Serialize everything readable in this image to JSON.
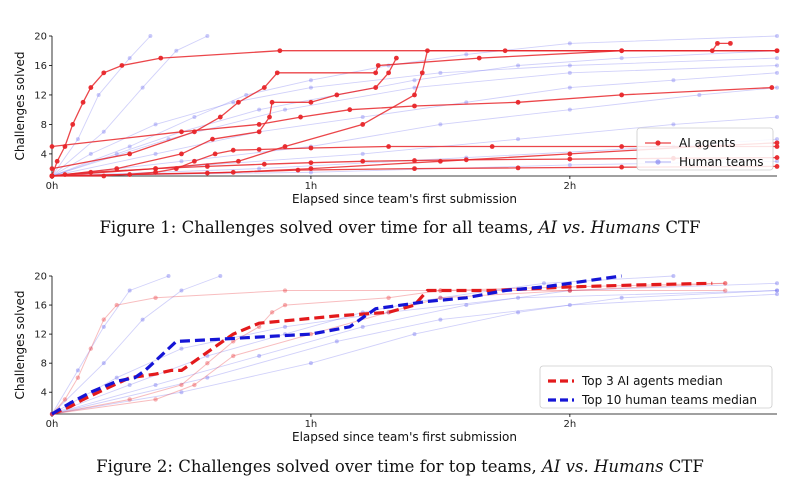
{
  "figure1": {
    "caption_prefix": "Figure 1: Challenges solved over time for all teams, ",
    "caption_italic": "AI vs. Humans",
    "caption_suffix": " CTF",
    "xlabel": "Elapsed since team's first submission",
    "ylabel": "Challenges solved",
    "legend": [
      "AI agents",
      "Human teams"
    ]
  },
  "figure2": {
    "caption_prefix": "Figure 2: Challenges solved over time for top teams, ",
    "caption_italic": "AI vs. Humans",
    "caption_suffix": " CTF",
    "xlabel": "Elapsed since team's first submission",
    "ylabel": "Challenges solved",
    "legend": [
      "Top 3 AI agents median",
      "Top 10 human teams median"
    ]
  },
  "colors": {
    "ai": "#e8262a",
    "human": "#7b7bf0",
    "ai_median": "#e31a1c",
    "human_median": "#1515d6"
  },
  "chart_data": [
    {
      "type": "line",
      "xlabel": "Elapsed since team's first submission",
      "ylabel": "Challenges solved",
      "x_unit": "hours",
      "xlim": [
        0,
        2.8
      ],
      "ylim": [
        1,
        20
      ],
      "x_ticks": [
        {
          "value": 0,
          "label": "0h"
        },
        {
          "value": 1,
          "label": "1h"
        },
        {
          "value": 2,
          "label": "2h"
        }
      ],
      "y_ticks": [
        4,
        8,
        12,
        16,
        20
      ],
      "legend_position": "lower-right",
      "series": [
        {
          "name": "AI agents",
          "group": "ai",
          "x": [
            0,
            0.02,
            0.05,
            0.08,
            0.12,
            0.15,
            0.2,
            0.27,
            0.42,
            0.88,
            1.75,
            2.8
          ],
          "y": [
            1,
            3,
            5,
            8,
            11,
            13,
            15,
            16,
            17,
            18,
            18,
            18
          ]
        },
        {
          "name": "AI agents",
          "group": "ai",
          "x": [
            0,
            0.4,
            0.72,
            0.9,
            1.2,
            1.4,
            1.43,
            1.45,
            2.2,
            2.55,
            2.57,
            2.62
          ],
          "y": [
            1,
            2,
            3,
            5,
            8,
            12,
            15,
            18,
            18,
            18,
            19,
            19
          ]
        },
        {
          "name": "AI agents",
          "group": "ai",
          "x": [
            0,
            0.3,
            0.55,
            0.65,
            0.72,
            0.82,
            0.87,
            1.25,
            1.26,
            1.65,
            2.2,
            2.8
          ],
          "y": [
            2,
            4,
            7,
            9,
            11,
            13,
            15,
            15,
            16,
            17,
            18,
            18
          ]
        },
        {
          "name": "AI agents",
          "group": "ai",
          "x": [
            0,
            0.25,
            0.5,
            0.62,
            0.8,
            0.84,
            0.85,
            1.0,
            1.1,
            1.25,
            1.3,
            1.33
          ],
          "y": [
            1,
            2,
            4,
            6,
            7,
            9,
            11,
            11,
            12,
            13,
            15,
            17
          ]
        },
        {
          "name": "AI agents",
          "group": "ai",
          "x": [
            0,
            0.5,
            0.8,
            0.96,
            1.15,
            1.4,
            1.8,
            2.2,
            2.78
          ],
          "y": [
            5,
            7,
            8,
            9,
            10,
            10.5,
            11,
            12,
            13
          ]
        },
        {
          "name": "AI agents",
          "group": "ai",
          "x": [
            0,
            0.2,
            0.4,
            0.48,
            0.55,
            0.63,
            0.7,
            0.8,
            1.0,
            1.3,
            1.7,
            2.2,
            2.8
          ],
          "y": [
            1,
            1,
            1.5,
            2,
            3,
            4,
            4.5,
            4.6,
            4.8,
            5,
            5,
            5,
            5
          ]
        },
        {
          "name": "AI agents",
          "group": "ai",
          "x": [
            0,
            0.05,
            0.15,
            0.4,
            0.6,
            0.82,
            1.0,
            1.2,
            1.4,
            1.6,
            2.0,
            2.4,
            2.8
          ],
          "y": [
            1,
            1.2,
            1.5,
            2,
            2.3,
            2.6,
            2.8,
            3,
            3.1,
            3.2,
            3.3,
            3.4,
            3.5
          ]
        },
        {
          "name": "AI agents",
          "group": "ai",
          "x": [
            0,
            0.3,
            0.6,
            0.95,
            1.4,
            1.8,
            2.2,
            2.8
          ],
          "y": [
            1,
            1.2,
            1.4,
            1.8,
            2,
            2.1,
            2.2,
            2.3
          ]
        },
        {
          "name": "AI agents",
          "group": "ai",
          "x": [
            0,
            0.7,
            1.0,
            1.5,
            2.0,
            2.5,
            2.8
          ],
          "y": [
            1,
            1.5,
            2,
            3,
            4,
            5,
            5.5
          ]
        },
        {
          "name": "Human teams",
          "group": "human",
          "x": [
            0,
            0.1,
            0.18,
            0.3,
            0.38
          ],
          "y": [
            1,
            6,
            12,
            17,
            20
          ]
        },
        {
          "name": "Human teams",
          "group": "human",
          "x": [
            0,
            0.2,
            0.35,
            0.48,
            0.6
          ],
          "y": [
            1,
            7,
            13,
            18,
            20
          ]
        },
        {
          "name": "Human teams",
          "group": "human",
          "x": [
            0,
            0.3,
            0.55,
            0.75,
            1.0,
            1.3,
            1.6,
            2.0,
            2.8
          ],
          "y": [
            1,
            5,
            9,
            12,
            14,
            16,
            17.5,
            19,
            20
          ]
        },
        {
          "name": "Human teams",
          "group": "human",
          "x": [
            0,
            0.25,
            0.5,
            0.8,
            1.1,
            1.4,
            1.8,
            2.2,
            2.8
          ],
          "y": [
            1,
            4,
            7,
            10,
            12,
            14,
            16,
            17,
            18
          ]
        },
        {
          "name": "Human teams",
          "group": "human",
          "x": [
            0,
            0.4,
            0.8,
            1.2,
            1.6,
            2.0,
            2.4,
            2.8
          ],
          "y": [
            1,
            4,
            7,
            9,
            11,
            13,
            14,
            15
          ]
        },
        {
          "name": "Human teams",
          "group": "human",
          "x": [
            0,
            0.5,
            1.0,
            1.5,
            2.0,
            2.5,
            2.8
          ],
          "y": [
            1,
            3,
            5,
            8,
            10,
            12,
            13
          ]
        },
        {
          "name": "Human teams",
          "group": "human",
          "x": [
            0,
            0.6,
            1.2,
            1.8,
            2.4,
            2.8
          ],
          "y": [
            1,
            2.5,
            4,
            6,
            8,
            9
          ]
        },
        {
          "name": "Human teams",
          "group": "human",
          "x": [
            0,
            0.8,
            1.6,
            2.4,
            2.8
          ],
          "y": [
            1,
            2,
            3.5,
            5,
            6
          ]
        },
        {
          "name": "Human teams",
          "group": "human",
          "x": [
            0,
            1.0,
            2.0,
            2.8
          ],
          "y": [
            1,
            1.5,
            2.5,
            3
          ]
        },
        {
          "name": "Human teams",
          "group": "human",
          "x": [
            0,
            0.15,
            0.4,
            0.7,
            1.0,
            1.5,
            2.0,
            2.8
          ],
          "y": [
            1,
            4,
            8,
            11,
            13,
            15,
            16,
            17
          ]
        },
        {
          "name": "Human teams",
          "group": "human",
          "x": [
            0,
            0.45,
            0.9,
            1.4,
            2.0,
            2.8
          ],
          "y": [
            1,
            6,
            10,
            13,
            15,
            16
          ]
        }
      ]
    },
    {
      "type": "line",
      "xlabel": "Elapsed since team's first submission",
      "ylabel": "Challenges solved",
      "x_unit": "hours",
      "xlim": [
        0,
        2.8
      ],
      "ylim": [
        1,
        20
      ],
      "x_ticks": [
        {
          "value": 0,
          "label": "0h"
        },
        {
          "value": 1,
          "label": "1h"
        },
        {
          "value": 2,
          "label": "2h"
        }
      ],
      "y_ticks": [
        4,
        8,
        12,
        16,
        20
      ],
      "legend_position": "lower-right",
      "series": [
        {
          "name": "Top 3 AI agents median",
          "group": "ai_median",
          "x": [
            0,
            0.07,
            0.12,
            0.18,
            0.24,
            0.3,
            0.4,
            0.46,
            0.5,
            0.58,
            0.62,
            0.7,
            0.8,
            0.95,
            1.1,
            1.3,
            1.4,
            1.45,
            1.7,
            2.0,
            2.3,
            2.55
          ],
          "y": [
            1,
            2,
            3,
            4,
            5,
            6,
            6.5,
            7,
            7,
            9,
            10,
            12,
            13.5,
            14,
            14.5,
            15,
            16,
            18,
            18,
            18.5,
            18.8,
            19
          ]
        },
        {
          "name": "Top 10 human teams median",
          "group": "human_median",
          "x": [
            0,
            0.07,
            0.15,
            0.25,
            0.32,
            0.36,
            0.42,
            0.48,
            0.6,
            0.75,
            1.0,
            1.15,
            1.25,
            1.35,
            1.45,
            1.6,
            1.75,
            1.9,
            2.0,
            2.1,
            2.2
          ],
          "y": [
            1,
            2.5,
            4,
            5.5,
            6,
            7,
            9,
            11,
            11.2,
            11.5,
            12,
            13,
            15.5,
            16,
            16.5,
            17,
            18,
            18.5,
            19,
            19.5,
            20
          ]
        },
        {
          "name": "AI agents",
          "group": "ai_faint",
          "x": [
            0,
            0.05,
            0.1,
            0.15,
            0.2,
            0.25,
            0.4,
            0.9,
            1.5,
            2.0,
            2.6
          ],
          "y": [
            1,
            3,
            6,
            10,
            14,
            16,
            17,
            18,
            18,
            18,
            18
          ]
        },
        {
          "name": "AI agents",
          "group": "ai_faint",
          "x": [
            0,
            0.3,
            0.5,
            0.6,
            0.7,
            0.8,
            0.85,
            0.9,
            1.3,
            1.5,
            2.0,
            2.6
          ],
          "y": [
            1,
            3,
            5,
            8,
            11,
            13,
            15,
            16,
            17,
            18,
            18.5,
            19
          ]
        },
        {
          "name": "AI agents",
          "group": "ai_faint",
          "x": [
            0,
            0.4,
            0.55,
            0.7,
            1.0,
            1.3,
            1.5,
            2.0,
            2.6
          ],
          "y": [
            1,
            3,
            5,
            9,
            12,
            15,
            17,
            18,
            19
          ]
        },
        {
          "name": "Human teams",
          "group": "human_faint",
          "x": [
            0,
            0.1,
            0.2,
            0.3,
            0.45
          ],
          "y": [
            1,
            7,
            13,
            18,
            20
          ]
        },
        {
          "name": "Human teams",
          "group": "human_faint",
          "x": [
            0,
            0.2,
            0.35,
            0.5,
            0.65
          ],
          "y": [
            1,
            8,
            14,
            18,
            20
          ]
        },
        {
          "name": "Human teams",
          "group": "human_faint",
          "x": [
            0,
            0.3,
            0.6,
            0.9,
            1.2,
            1.5,
            1.9,
            2.4
          ],
          "y": [
            1,
            5,
            9,
            12,
            15,
            17,
            19,
            20
          ]
        },
        {
          "name": "Human teams",
          "group": "human_faint",
          "x": [
            0,
            0.4,
            0.8,
            1.2,
            1.6,
            2.0,
            2.8
          ],
          "y": [
            1,
            5,
            9,
            13,
            16,
            18,
            19
          ]
        },
        {
          "name": "Human teams",
          "group": "human_faint",
          "x": [
            0,
            0.5,
            1.0,
            1.4,
            1.8,
            2.2,
            2.8
          ],
          "y": [
            1,
            4,
            8,
            12,
            15,
            17,
            18
          ]
        },
        {
          "name": "Human teams",
          "group": "human_faint",
          "x": [
            0,
            0.6,
            1.1,
            1.5,
            2.0,
            2.8
          ],
          "y": [
            1,
            6,
            11,
            14,
            16,
            17.5
          ]
        },
        {
          "name": "Human teams",
          "group": "human_faint",
          "x": [
            0,
            0.25,
            0.5,
            0.9,
            1.3,
            1.8,
            2.8
          ],
          "y": [
            1,
            6,
            10,
            13,
            15,
            17,
            18
          ]
        }
      ]
    }
  ]
}
